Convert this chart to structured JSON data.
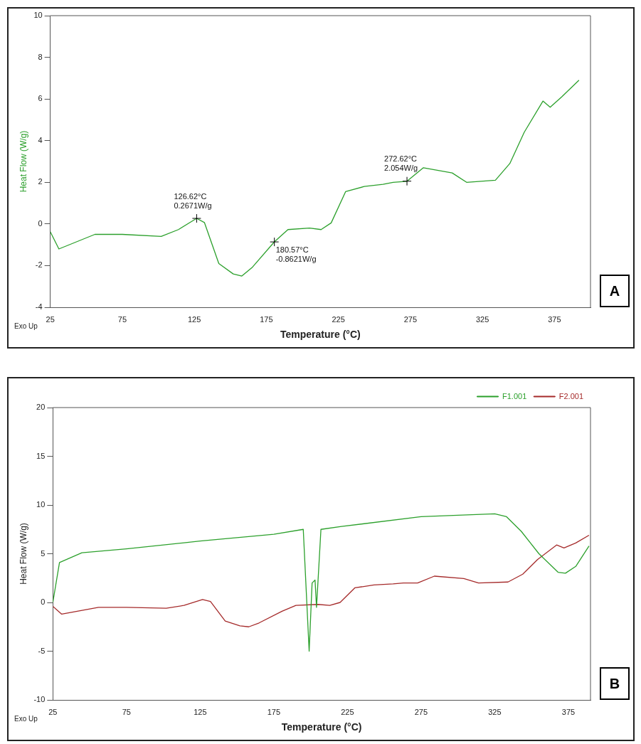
{
  "chart_data": [
    {
      "type": "line",
      "xlabel": "Temperature (°C)",
      "ylabel": "Heat Flow (W/g)",
      "xlim": [
        25,
        400
      ],
      "xticks": [
        25,
        75,
        125,
        175,
        225,
        275,
        325,
        375
      ],
      "ylim": [
        -4,
        10
      ],
      "yticks": [
        -4,
        -2,
        0,
        2,
        4,
        6,
        8,
        10
      ],
      "grid": false,
      "legend": false,
      "x": [
        25,
        31,
        56,
        75,
        102,
        114,
        126.62,
        132,
        142,
        152,
        158,
        165,
        180.57,
        190,
        205,
        213,
        220,
        230,
        243,
        256,
        263,
        272.62,
        284,
        304,
        314,
        334,
        344,
        354,
        367,
        372,
        380,
        392
      ],
      "series": [
        {
          "color": "#2ca02c",
          "values": [
            -0.37,
            -1.2,
            -0.5,
            -0.5,
            -0.6,
            -0.27,
            0.27,
            0.07,
            -1.9,
            -2.4,
            -2.5,
            -2.1,
            -0.86,
            -0.27,
            -0.2,
            -0.27,
            0.05,
            1.55,
            1.8,
            1.9,
            2.0,
            2.05,
            2.7,
            2.45,
            2.0,
            2.1,
            2.9,
            4.4,
            5.9,
            5.6,
            6.1,
            6.9
          ]
        }
      ],
      "annotations": [
        "Exo Up",
        {
          "text": "126.62°C\n0.2671W/g",
          "x": 126.62,
          "y": 0.2671
        },
        {
          "text": "180.57°C\n-0.8621W/g",
          "x": 180.57,
          "y": -0.8621
        },
        {
          "text": "272.62°C\n2.054W/g",
          "x": 272.62,
          "y": 2.054
        },
        "A"
      ]
    },
    {
      "type": "line",
      "xlabel": "Temperature (°C)",
      "ylabel": "Heat Flow (W/g)",
      "xlim": [
        25,
        390
      ],
      "xticks": [
        25,
        75,
        125,
        175,
        225,
        275,
        325,
        375
      ],
      "ylim": [
        -10,
        20
      ],
      "yticks": [
        -10,
        -5,
        0,
        5,
        10,
        15,
        20
      ],
      "grid": false,
      "legend": "top right",
      "series": [
        {
          "name": "F1.001",
          "color": "#2ca02c",
          "x": [
            25,
            29.5,
            44.7,
            75,
            125,
            175,
            195,
            199,
            201,
            203,
            204,
            207,
            221,
            275,
            325,
            333,
            343,
            355,
            368,
            373,
            380,
            389
          ],
          "values": [
            0,
            4.1,
            5.1,
            5.5,
            6.3,
            7.0,
            7.5,
            -5,
            2,
            2.3,
            -0.5,
            7.5,
            7.8,
            8.8,
            9.1,
            8.8,
            7.3,
            5,
            3.1,
            3.0,
            3.7,
            5.8
          ]
        },
        {
          "name": "F2.001",
          "color": "#a52a2a",
          "x": [
            25,
            31,
            56,
            75,
            102,
            114,
            126.62,
            132,
            142,
            152,
            158,
            165,
            180.57,
            190,
            205,
            213,
            220,
            230,
            243,
            256,
            263,
            272.62,
            284,
            304,
            314,
            334,
            344,
            354,
            367,
            372,
            380,
            389
          ],
          "values": [
            -0.4,
            -1.2,
            -0.5,
            -0.5,
            -0.6,
            -0.3,
            0.3,
            0.1,
            -1.9,
            -2.4,
            -2.5,
            -2.1,
            -0.9,
            -0.3,
            -0.2,
            -0.3,
            0.0,
            1.5,
            1.8,
            1.9,
            2.0,
            2.0,
            2.7,
            2.45,
            2.0,
            2.1,
            2.9,
            4.4,
            5.9,
            5.6,
            6.1,
            6.9
          ]
        }
      ],
      "annotations": [
        "Exo Up",
        "B"
      ]
    }
  ]
}
